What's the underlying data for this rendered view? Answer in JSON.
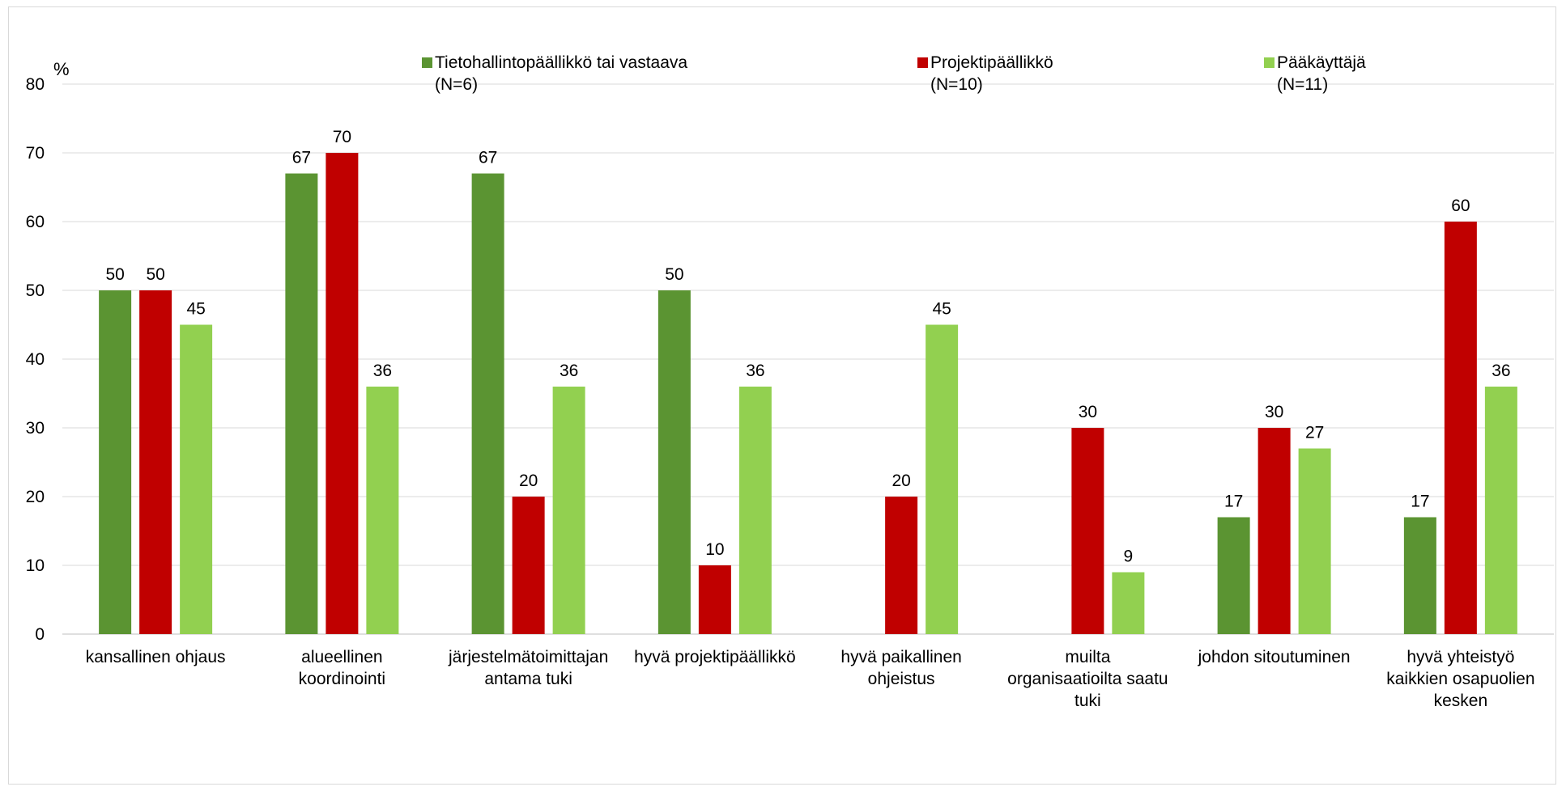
{
  "chart_data": {
    "type": "bar",
    "ylabel": "%",
    "ylim": [
      0,
      80
    ],
    "yticks": [
      0,
      10,
      20,
      30,
      40,
      50,
      60,
      70,
      80
    ],
    "grid": true,
    "legend_position": "top",
    "categories": [
      [
        "kansallinen ohjaus"
      ],
      [
        "alueellinen",
        "koordinointi"
      ],
      [
        "järjestelmätoimittajan",
        "antama tuki"
      ],
      [
        "hyvä projektipäällikkö"
      ],
      [
        "hyvä paikallinen",
        "ohjeistus"
      ],
      [
        "muilta",
        "organisaatioilta saatu",
        "tuki"
      ],
      [
        "johdon sitoutuminen"
      ],
      [
        "hyvä yhteistyö",
        "kaikkien osapuolien",
        "kesken"
      ]
    ],
    "series": [
      {
        "name": "Tietohallintopäällikkö tai vastaava",
        "n": "(N=6)",
        "color": "#5b9432",
        "values": [
          50,
          67,
          67,
          50,
          null,
          null,
          17,
          17
        ]
      },
      {
        "name": "Projektipäällikkö",
        "n": "(N=10)",
        "color": "#c00000",
        "values": [
          50,
          70,
          20,
          10,
          20,
          30,
          30,
          60
        ]
      },
      {
        "name": "Pääkäyttäjä",
        "n": "(N=11)",
        "color": "#92d050",
        "values": [
          45,
          36,
          36,
          36,
          45,
          9,
          27,
          36
        ]
      }
    ]
  }
}
